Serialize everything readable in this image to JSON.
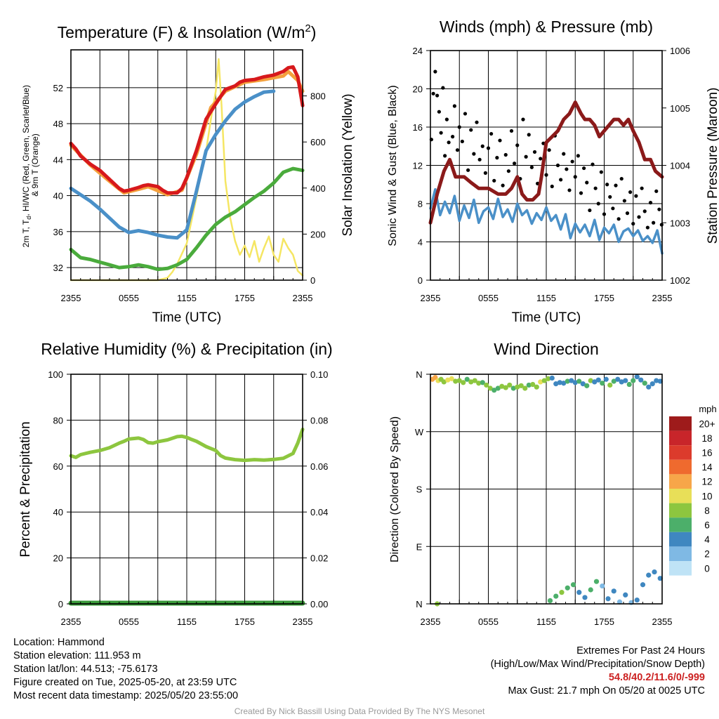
{
  "chart_data": [
    {
      "type": "line",
      "title": "Temperature (F) & Insolation (W/m²)",
      "xlabel": "Time (UTC)",
      "ylabel": "2m T, Td, HI/WC (Red, Green, Scarlet/Blue) & 9m T (Orange)",
      "ylabel_lines": [
        "2m T, T",
        "d",
        ", HI/WC (Red, Green, Scarlet/Blue)",
        "& 9m T (Orange)"
      ],
      "y2label": "Solar Insolation (Yellow)",
      "x_ticks": [
        "2355",
        "0555",
        "1155",
        "1755",
        "2355"
      ],
      "x_range": [
        0,
        24
      ],
      "ylim": [
        30.6,
        56.2
      ],
      "y_ticks": [
        32,
        36,
        40,
        44,
        48,
        52
      ],
      "y2lim": [
        0,
        1000
      ],
      "y2_ticks": [
        0,
        200,
        400,
        600,
        800
      ],
      "series": [
        {
          "color": "#d7191c",
          "axis": "left",
          "x": [
            0,
            0.5,
            1,
            2,
            3,
            4,
            5,
            5.5,
            6,
            7,
            7.5,
            8,
            9,
            9.5,
            10,
            11,
            11.5,
            12,
            13,
            14,
            15,
            16,
            17,
            17.5,
            18,
            19,
            20,
            21,
            22,
            22.5,
            23,
            23.5,
            24
          ],
          "values": [
            45.8,
            45.2,
            44.4,
            43.5,
            42.8,
            41.8,
            40.8,
            40.5,
            40.6,
            40.9,
            41.1,
            41.2,
            41.0,
            40.6,
            40.3,
            40.3,
            40.8,
            42.0,
            45.0,
            48.5,
            50.2,
            51.8,
            52.2,
            52.6,
            52.8,
            52.9,
            53.2,
            53.4,
            53.8,
            54.2,
            54.3,
            53.2,
            50.0
          ]
        },
        {
          "color": "#f4a03c",
          "axis": "left",
          "x": [
            0,
            2,
            4,
            5.5,
            7,
            8,
            10,
            11.5,
            13,
            14.5,
            16,
            18,
            20,
            22,
            22.5,
            23.5,
            24
          ],
          "values": [
            45.6,
            43.4,
            41.6,
            40.3,
            40.7,
            41.0,
            40.1,
            40.6,
            44.6,
            49.8,
            51.6,
            52.6,
            52.9,
            53.3,
            53.8,
            52.8,
            51.6
          ]
        },
        {
          "color": "#4a90c8",
          "axis": "left",
          "x": [
            0,
            1,
            2,
            3,
            4,
            5,
            6,
            7,
            8,
            9,
            10,
            11,
            12,
            13,
            14,
            15,
            16,
            17,
            18,
            19,
            20,
            21
          ],
          "values": [
            40.8,
            40.1,
            39.4,
            38.5,
            37.5,
            36.5,
            35.9,
            36.1,
            35.9,
            35.6,
            35.4,
            35.3,
            36.2,
            40.5,
            45.0,
            46.8,
            48.3,
            49.6,
            50.4,
            51.0,
            51.5,
            51.6
          ]
        },
        {
          "color": "#4aab3c",
          "axis": "left",
          "x": [
            0,
            1,
            2,
            3,
            4,
            5,
            6,
            7,
            8,
            9,
            10,
            11,
            12,
            13,
            14,
            15,
            16,
            17,
            18,
            19,
            20,
            21,
            22,
            23,
            24
          ],
          "values": [
            34.0,
            33.1,
            32.9,
            32.6,
            32.3,
            32.0,
            32.1,
            32.3,
            32.1,
            31.8,
            31.9,
            32.3,
            32.9,
            34.2,
            35.6,
            36.8,
            37.6,
            38.2,
            39.0,
            39.8,
            40.5,
            41.4,
            42.6,
            43.0,
            42.8
          ]
        },
        {
          "color": "#f5e663",
          "axis": "right",
          "x": [
            0,
            9,
            10,
            10.5,
            11,
            12,
            12.5,
            13,
            13.5,
            14,
            14.5,
            15,
            15.3,
            15.6,
            16,
            16.5,
            17,
            17.5,
            18,
            18.5,
            19,
            19.5,
            20,
            20.5,
            21,
            21.5,
            22,
            22.5,
            23,
            23.5,
            24
          ],
          "values": [
            0,
            0,
            10,
            35,
            70,
            160,
            260,
            360,
            470,
            560,
            700,
            820,
            960,
            760,
            430,
            270,
            170,
            110,
            150,
            100,
            170,
            80,
            140,
            190,
            110,
            80,
            180,
            140,
            110,
            40,
            20
          ]
        }
      ]
    },
    {
      "type": "line",
      "title": "Winds (mph) & Pressure (mb)",
      "xlabel": "Time (UTC)",
      "ylabel": "Sonic Wind & Gust (Blue, Black)",
      "y2label": "Station Pressure (Maroon)",
      "x_ticks": [
        "2355",
        "0555",
        "1155",
        "1755",
        "2355"
      ],
      "x_range": [
        0,
        24
      ],
      "ylim": [
        0,
        24
      ],
      "y_ticks": [
        0,
        4,
        8,
        12,
        16,
        20,
        24
      ],
      "y2lim": [
        1002,
        1006
      ],
      "y2_ticks": [
        1002,
        1003,
        1004,
        1005,
        1006
      ],
      "series": [
        {
          "color": "#4a90c8",
          "axis": "left",
          "x": [
            0,
            0.5,
            1,
            1.5,
            2,
            2.5,
            3,
            3.5,
            4,
            4.5,
            5,
            5.5,
            6,
            6.5,
            7,
            7.5,
            8,
            8.5,
            9,
            9.5,
            10,
            10.5,
            11,
            11.5,
            12,
            12.5,
            13,
            13.5,
            14,
            14.5,
            15,
            15.5,
            16,
            16.5,
            17,
            17.5,
            18,
            18.5,
            19,
            19.5,
            20,
            20.5,
            21,
            21.5,
            22,
            22.5,
            23,
            23.5,
            24
          ],
          "values": [
            7.5,
            9.5,
            6.8,
            8.2,
            7.0,
            8.8,
            6.2,
            7.8,
            6.5,
            8.4,
            6.0,
            7.2,
            7.6,
            6.4,
            8.5,
            6.6,
            7.4,
            6.1,
            8.0,
            6.8,
            7.3,
            5.9,
            7.0,
            6.3,
            7.6,
            6.2,
            6.8,
            5.3,
            6.9,
            4.4,
            5.9,
            5.0,
            5.8,
            4.6,
            6.3,
            4.2,
            5.5,
            4.9,
            5.8,
            4.0,
            5.1,
            5.4,
            4.6,
            5.2,
            4.1,
            4.6,
            3.9,
            5.2,
            2.8
          ]
        },
        {
          "color": "#8b1a1a",
          "axis": "right",
          "x": [
            0,
            0.7,
            1.4,
            2.0,
            2.6,
            3.5,
            4.2,
            5.0,
            6.0,
            7.0,
            7.8,
            8.4,
            9.0,
            9.5,
            10.0,
            10.6,
            11.2,
            11.5,
            12.0,
            12.6,
            13.2,
            13.8,
            14.4,
            15.0,
            15.6,
            16.0,
            16.5,
            17.0,
            17.5,
            18.0,
            18.5,
            19.0,
            19.5,
            20.0,
            20.5,
            21.0,
            21.6,
            22.2,
            22.8,
            23.3,
            24.0
          ],
          "values": [
            1003.0,
            1003.5,
            1003.9,
            1004.1,
            1003.8,
            1003.8,
            1003.7,
            1003.6,
            1003.6,
            1003.5,
            1003.5,
            1003.6,
            1003.8,
            1003.5,
            1003.4,
            1003.4,
            1003.5,
            1003.8,
            1004.4,
            1004.5,
            1004.6,
            1004.8,
            1004.9,
            1005.1,
            1004.9,
            1004.8,
            1004.8,
            1004.7,
            1004.5,
            1004.6,
            1004.7,
            1004.8,
            1004.8,
            1004.7,
            1004.8,
            1004.6,
            1004.4,
            1004.1,
            1004.1,
            1003.9,
            1003.8
          ]
        }
      ],
      "gust_series": {
        "color": "#000000",
        "x": [
          0.1,
          0.3,
          0.5,
          0.7,
          0.9,
          1.1,
          1.3,
          1.5,
          1.7,
          1.9,
          2.1,
          2.3,
          2.5,
          2.8,
          3.0,
          3.3,
          3.6,
          3.9,
          4.2,
          4.5,
          4.8,
          5.1,
          5.4,
          5.7,
          6.0,
          6.3,
          6.6,
          6.9,
          7.2,
          7.5,
          7.8,
          8.1,
          8.4,
          8.7,
          9.0,
          9.3,
          9.6,
          9.9,
          10.2,
          10.5,
          10.8,
          11.1,
          11.4,
          11.7,
          12.0,
          12.3,
          12.6,
          12.9,
          13.2,
          13.5,
          13.8,
          14.1,
          14.4,
          14.7,
          15.0,
          15.3,
          15.6,
          15.9,
          16.2,
          16.5,
          16.8,
          17.1,
          17.4,
          17.7,
          18.0,
          18.3,
          18.6,
          18.9,
          19.2,
          19.5,
          19.8,
          20.1,
          20.4,
          20.7,
          21.0,
          21.3,
          21.6,
          21.9,
          22.2,
          22.5,
          22.8,
          23.1,
          23.4,
          23.7,
          23.95
        ],
        "values": [
          14.7,
          19.5,
          21.8,
          19.3,
          17.6,
          15.4,
          20.1,
          13.0,
          16.8,
          14.4,
          12.3,
          15.0,
          18.2,
          13.6,
          16.0,
          14.5,
          17.4,
          11.5,
          15.7,
          13.2,
          16.5,
          12.6,
          14.0,
          11.2,
          13.8,
          15.3,
          10.4,
          12.8,
          14.6,
          9.9,
          13.1,
          11.4,
          15.6,
          12.2,
          14.1,
          10.6,
          16.8,
          12.9,
          15.2,
          11.8,
          13.4,
          10.1,
          12.7,
          14.3,
          11.0,
          13.6,
          9.8,
          15.1,
          12.0,
          10.5,
          13.2,
          11.6,
          9.4,
          12.4,
          10.8,
          13.0,
          9.1,
          11.7,
          10.2,
          7.3,
          12.1,
          9.6,
          8.0,
          11.3,
          6.9,
          10.0,
          8.7,
          7.5,
          9.9,
          6.4,
          10.6,
          8.3,
          7.0,
          9.2,
          5.9,
          8.8,
          6.6,
          9.6,
          7.2,
          5.5,
          8.1,
          6.0,
          9.3,
          7.4,
          5.8
        ]
      }
    },
    {
      "type": "line",
      "title": "Relative Humidity (%) & Precipitation (in)",
      "ylabel": "Percent & Precipitation",
      "x_ticks": [
        "2355",
        "0555",
        "1155",
        "1755",
        "2355"
      ],
      "x_range": [
        0,
        24
      ],
      "ylim": [
        0,
        100
      ],
      "y_ticks": [
        0,
        20,
        40,
        60,
        80,
        100
      ],
      "y2lim": [
        0,
        0.1
      ],
      "y2_ticks": [
        "0.00",
        "0.02",
        "0.04",
        "0.06",
        "0.08",
        "0.10"
      ],
      "series": [
        {
          "color": "#8dc63f",
          "axis": "left",
          "x": [
            0,
            0.5,
            1,
            2,
            3,
            4,
            5,
            5.5,
            6,
            7,
            7.5,
            8,
            8.5,
            9,
            10,
            11,
            11.5,
            12,
            12.5,
            13,
            14,
            15,
            15.5,
            16,
            17,
            18,
            19,
            20,
            21,
            22,
            23,
            23.5,
            24
          ],
          "values": [
            64.5,
            63.8,
            65.0,
            66.0,
            66.8,
            68.0,
            70.0,
            70.8,
            71.8,
            72.2,
            71.6,
            70.2,
            70.0,
            70.6,
            71.4,
            72.8,
            73.0,
            72.5,
            71.6,
            70.8,
            68.5,
            66.8,
            64.6,
            63.5,
            62.8,
            62.5,
            62.8,
            62.6,
            62.9,
            63.4,
            65.5,
            70.0,
            76.0
          ]
        },
        {
          "color": "#3a9a3a",
          "axis": "right",
          "x": [
            0,
            24
          ],
          "values": [
            0.0,
            0.0
          ]
        }
      ]
    },
    {
      "type": "scatter",
      "title": "Wind Direction",
      "ylabel": "Direction (Colored By Speed)",
      "x_ticks": [
        "2355",
        "0555",
        "1155",
        "1755",
        "2355"
      ],
      "x_range": [
        0,
        24
      ],
      "y_tick_labels": [
        "N",
        "E",
        "S",
        "W",
        "N"
      ],
      "ylim": [
        0,
        360
      ],
      "legend_title": "mph",
      "legend_labels": [
        "20+",
        "18",
        "16",
        "14",
        "12",
        "10",
        "8",
        "6",
        "4",
        "2",
        "0"
      ],
      "legend_colors": [
        "#9e1b1b",
        "#c8252a",
        "#dc3b2c",
        "#ef6a2e",
        "#f7a649",
        "#e8df58",
        "#8dc63f",
        "#4caf6a",
        "#3f87c0",
        "#7fb9e4",
        "#bfe3f6"
      ],
      "x": [
        0.2,
        0.5,
        0.8,
        1.1,
        1.4,
        1.8,
        2.2,
        2.6,
        3.0,
        3.4,
        3.8,
        4.2,
        4.6,
        5.0,
        5.4,
        5.8,
        6.2,
        6.6,
        7.0,
        7.4,
        7.8,
        8.2,
        8.6,
        9.0,
        9.4,
        9.8,
        10.2,
        10.6,
        11.0,
        11.4,
        11.8,
        12.2,
        12.6,
        13.0,
        13.4,
        13.8,
        14.2,
        14.6,
        15.0,
        15.4,
        15.8,
        16.2,
        16.6,
        17.0,
        17.4,
        17.8,
        18.2,
        18.6,
        19.0,
        19.4,
        19.8,
        20.2,
        20.6,
        21.0,
        21.4,
        21.8,
        22.2,
        22.6,
        23.0,
        23.4,
        23.8,
        0.7,
        12.4,
        13.0,
        13.6,
        14.2,
        14.8,
        15.4,
        16.0,
        16.6,
        17.2,
        17.8,
        18.4,
        19.0,
        19.6,
        20.2,
        20.8,
        21.4,
        22.0,
        22.6,
        23.2,
        23.8
      ],
      "y": [
        352,
        355,
        350,
        352,
        348,
        351,
        353,
        349,
        350,
        347,
        352,
        348,
        350,
        346,
        347,
        343,
        338,
        335,
        338,
        341,
        339,
        343,
        338,
        340,
        342,
        338,
        343,
        344,
        340,
        348,
        350,
        353,
        354,
        345,
        347,
        346,
        349,
        350,
        347,
        349,
        345,
        342,
        350,
        348,
        351,
        346,
        352,
        343,
        349,
        352,
        348,
        350,
        344,
        350,
        356,
        351,
        346,
        340,
        345,
        350,
        349,
        0,
        5,
        12,
        18,
        25,
        30,
        18,
        10,
        22,
        35,
        28,
        8,
        20,
        3,
        14,
        2,
        6,
        30,
        45,
        50,
        40
      ],
      "speeds": [
        11,
        12,
        10,
        8,
        7,
        9,
        10,
        8,
        7,
        8,
        6,
        7,
        8,
        7,
        6,
        8,
        7,
        5,
        6,
        8,
        7,
        8,
        6,
        7,
        8,
        7,
        6,
        8,
        7,
        9,
        8,
        7,
        4,
        4,
        3,
        4,
        5,
        4,
        4,
        5,
        4,
        6,
        7,
        4,
        3,
        5,
        4,
        7,
        6,
        4,
        3,
        4,
        6,
        5,
        3,
        4,
        5,
        4,
        3,
        4,
        4,
        7,
        5,
        6,
        7,
        5,
        6,
        4,
        3,
        6,
        5,
        2,
        4,
        3,
        2,
        4,
        2,
        3,
        4,
        4,
        3,
        4
      ]
    }
  ],
  "labels": {
    "time_label": "Time (UTC)"
  },
  "info": {
    "location": "Location: Hammond",
    "elevation": "Station elevation: 111.953 m",
    "latlon": "Station lat/lon: 44.513; -75.6173",
    "created": "Figure created on Tue, 2025-05-20, at 23:59 UTC",
    "recent": "Most recent data timestamp: 2025/05/20 23:55:00"
  },
  "extremes": {
    "title": "Extremes For Past 24 Hours",
    "subtitle": "(High/Low/Max Wind/Precipitation/Snow Depth)",
    "values": "54.8/40.2/11.6/0/-999",
    "gust": "Max Gust: 21.7 mph On 05/20 at 0025 UTC",
    "values_color": "#cc2222"
  },
  "credit": "Created By Nick Bassill Using Data Provided By The NYS Mesonet"
}
